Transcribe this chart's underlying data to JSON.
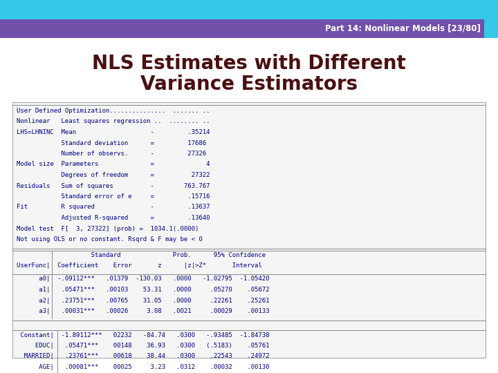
{
  "title_line1": "NLS Estimates with Different",
  "title_line2": "Variance Estimators",
  "header_text": "Part 14: Nonlinear Models [23/80]",
  "top_bar_color": "#36c8e8",
  "header_bar_color": "#7050a8",
  "header_text_color": "#ffffff",
  "title_color": "#4a1010",
  "background_color": "#ffffff",
  "mono_text_color": "#000080",
  "mono_font_size": 6.5,
  "output_lines_top": [
    "User Defined Optimization...............  ....... ..",
    "Nonlinear   Least squares regression ..  ........ ..",
    "LHS=LHNINC  Mean                    -         .35214",
    "            Standard deviation      =         17686",
    "            Number of observs.      -         27326",
    "Model size  Parameters              =              4",
    "            Degrees of freedom      =          27322",
    "Residuals   Sum of squares          -        763.767",
    "            Standard error of e     =         .15716",
    "Fit         R squared               -         .13637",
    "            Adjusted R-squared      =         .13640",
    "Model test  F[  3, 27322] (prob) =  1034.1(.0000)",
    "Not using OLS or no constant. Rsqrd & F may be < 0"
  ],
  "table1_col_header1": "                    Standard              Prob.      95% Confidence",
  "table1_col_header2": "UserFunc|  Coefficient    Error       z      |z|>Z*       Interval",
  "table1_rows": [
    "      a0|  -.09112***   .01379  -130.03   .0000   -1.02795  -1.05420",
    "      a1|   .05471***   .00103    53.31   .0000     .05270    .05672",
    "      a2|   .23751***   .00765    31.05   .0000     .22261    .25261",
    "      a3|   .00031***   .00026     3.08   .0021     .00029    .00133"
  ],
  "table2_rows": [
    " Constant|  -1.89112***   02232   -84.74   .0300   -.93485  -1.84738",
    "     EDUC|   .05471***    00148    36.93   .0300   (.5183)    .05761",
    "  MARRIED|   .23761***    00618    38.44   .0300    .22543    .24972",
    "      AGE|   .00081***    00025     3.23   .0312    .00032    .00130"
  ]
}
